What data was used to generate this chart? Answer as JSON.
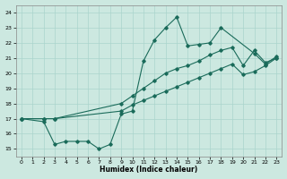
{
  "xlabel": "Humidex (Indice chaleur)",
  "xlim": [
    -0.5,
    23.5
  ],
  "ylim": [
    14.5,
    24.5
  ],
  "xticks": [
    0,
    1,
    2,
    3,
    4,
    5,
    6,
    7,
    8,
    9,
    10,
    11,
    12,
    13,
    14,
    15,
    16,
    17,
    18,
    19,
    20,
    21,
    22,
    23
  ],
  "yticks": [
    15,
    16,
    17,
    18,
    19,
    20,
    21,
    22,
    23,
    24
  ],
  "bg_color": "#cce8e0",
  "line_color": "#1a6b5a",
  "grid_color": "#aad4cc",
  "line1_x": [
    0,
    2,
    3,
    4,
    5,
    6,
    7,
    8,
    9,
    10,
    11,
    12,
    13,
    14,
    15,
    16,
    17,
    18,
    21,
    22,
    23
  ],
  "line1_y": [
    17.0,
    16.8,
    15.3,
    15.5,
    15.5,
    15.5,
    15.0,
    15.3,
    17.3,
    17.5,
    20.8,
    22.2,
    23.0,
    23.7,
    21.8,
    21.9,
    22.0,
    23.0,
    21.3,
    20.6,
    21.1
  ],
  "line2_x": [
    0,
    2,
    3,
    9,
    10,
    11,
    12,
    13,
    14,
    15,
    16,
    17,
    18,
    19,
    20,
    21,
    22,
    23
  ],
  "line2_y": [
    17.0,
    17.0,
    17.0,
    18.0,
    18.5,
    19.0,
    19.5,
    20.0,
    20.3,
    20.5,
    20.8,
    21.2,
    21.5,
    21.7,
    20.5,
    21.5,
    20.7,
    21.0
  ],
  "line3_x": [
    0,
    2,
    3,
    9,
    10,
    11,
    12,
    13,
    14,
    15,
    16,
    17,
    18,
    19,
    20,
    21,
    22,
    23
  ],
  "line3_y": [
    17.0,
    17.0,
    17.0,
    17.5,
    17.9,
    18.2,
    18.5,
    18.8,
    19.1,
    19.4,
    19.7,
    20.0,
    20.3,
    20.6,
    19.9,
    20.1,
    20.5,
    21.0
  ]
}
